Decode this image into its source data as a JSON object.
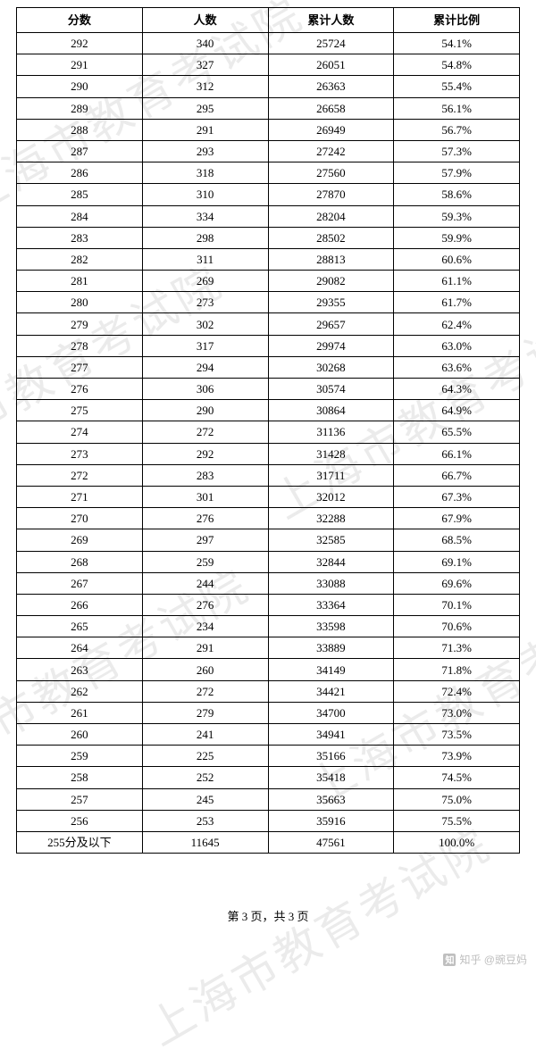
{
  "columns": [
    "分数",
    "人数",
    "累计人数",
    "累计比例"
  ],
  "rows": [
    [
      "292",
      "340",
      "25724",
      "54.1%"
    ],
    [
      "291",
      "327",
      "26051",
      "54.8%"
    ],
    [
      "290",
      "312",
      "26363",
      "55.4%"
    ],
    [
      "289",
      "295",
      "26658",
      "56.1%"
    ],
    [
      "288",
      "291",
      "26949",
      "56.7%"
    ],
    [
      "287",
      "293",
      "27242",
      "57.3%"
    ],
    [
      "286",
      "318",
      "27560",
      "57.9%"
    ],
    [
      "285",
      "310",
      "27870",
      "58.6%"
    ],
    [
      "284",
      "334",
      "28204",
      "59.3%"
    ],
    [
      "283",
      "298",
      "28502",
      "59.9%"
    ],
    [
      "282",
      "311",
      "28813",
      "60.6%"
    ],
    [
      "281",
      "269",
      "29082",
      "61.1%"
    ],
    [
      "280",
      "273",
      "29355",
      "61.7%"
    ],
    [
      "279",
      "302",
      "29657",
      "62.4%"
    ],
    [
      "278",
      "317",
      "29974",
      "63.0%"
    ],
    [
      "277",
      "294",
      "30268",
      "63.6%"
    ],
    [
      "276",
      "306",
      "30574",
      "64.3%"
    ],
    [
      "275",
      "290",
      "30864",
      "64.9%"
    ],
    [
      "274",
      "272",
      "31136",
      "65.5%"
    ],
    [
      "273",
      "292",
      "31428",
      "66.1%"
    ],
    [
      "272",
      "283",
      "31711",
      "66.7%"
    ],
    [
      "271",
      "301",
      "32012",
      "67.3%"
    ],
    [
      "270",
      "276",
      "32288",
      "67.9%"
    ],
    [
      "269",
      "297",
      "32585",
      "68.5%"
    ],
    [
      "268",
      "259",
      "32844",
      "69.1%"
    ],
    [
      "267",
      "244",
      "33088",
      "69.6%"
    ],
    [
      "266",
      "276",
      "33364",
      "70.1%"
    ],
    [
      "265",
      "234",
      "33598",
      "70.6%"
    ],
    [
      "264",
      "291",
      "33889",
      "71.3%"
    ],
    [
      "263",
      "260",
      "34149",
      "71.8%"
    ],
    [
      "262",
      "272",
      "34421",
      "72.4%"
    ],
    [
      "261",
      "279",
      "34700",
      "73.0%"
    ],
    [
      "260",
      "241",
      "34941",
      "73.5%"
    ],
    [
      "259",
      "225",
      "35166",
      "73.9%"
    ],
    [
      "258",
      "252",
      "35418",
      "74.5%"
    ],
    [
      "257",
      "245",
      "35663",
      "75.0%"
    ],
    [
      "256",
      "253",
      "35916",
      "75.5%"
    ],
    [
      "255分及以下",
      "11645",
      "47561",
      "100.0%"
    ]
  ],
  "footer": "第 3 页，共 3 页",
  "watermark_text": "上海市教育考试院",
  "attribution": "知乎 @豌豆妈"
}
